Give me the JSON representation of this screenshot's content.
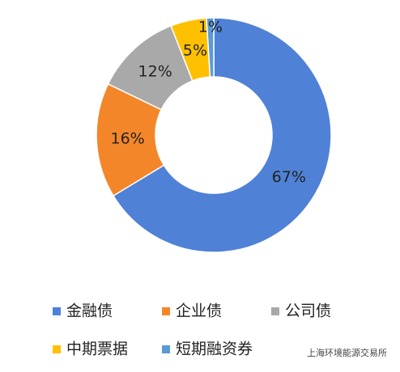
{
  "chart_data": {
    "type": "donut",
    "categories": [
      "金融债",
      "企业债",
      "公司债",
      "中期票据",
      "短期融资券"
    ],
    "values": [
      67,
      16,
      12,
      5,
      1
    ],
    "value_labels": [
      "67%",
      "16%",
      "12%",
      "5%",
      "1%"
    ],
    "colors": [
      "#4f81d6",
      "#f4862a",
      "#a9a9a9",
      "#ffc000",
      "#5b9bd5"
    ],
    "watermark": "上海环境能源交易所"
  }
}
